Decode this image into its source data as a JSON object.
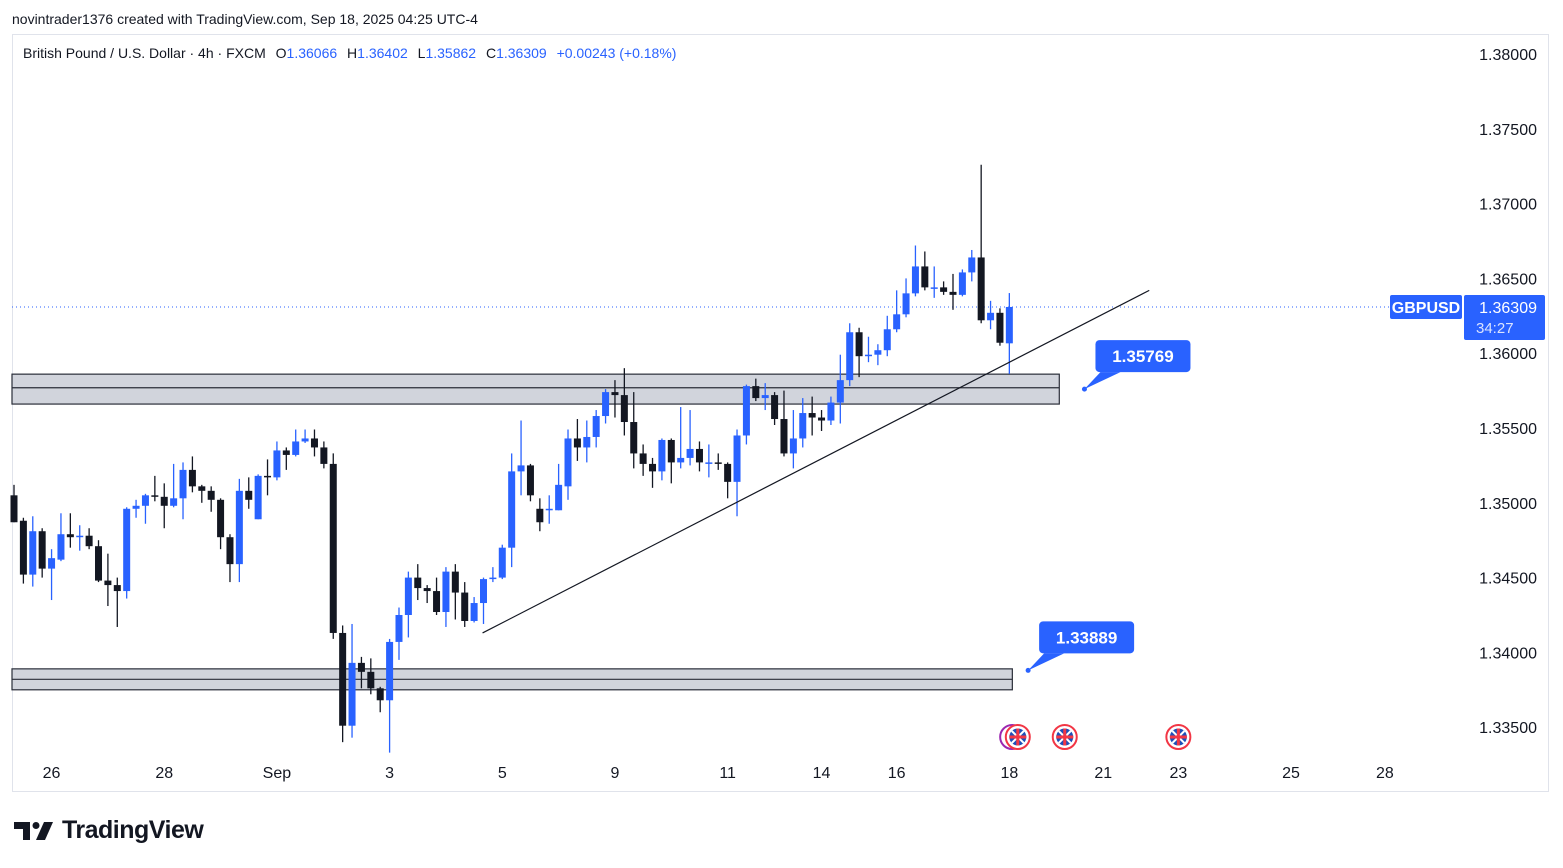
{
  "caption": "novintrader1376 created with TradingView.com, Sep 18, 2025 04:25 UTC-4",
  "legend": {
    "symbol": "British Pound / U.S. Dollar · 4h · FXCM",
    "o_label": "O",
    "o": "1.36066",
    "h_label": "H",
    "h": "1.36402",
    "l_label": "L",
    "l": "1.35862",
    "c_label": "C",
    "c": "1.36309",
    "change": "+0.00243 (+0.18%)"
  },
  "price_tag": {
    "symbol": "GBPUSD",
    "price": "1.36309",
    "countdown": "34:27"
  },
  "logo": {
    "text": "TradingView"
  },
  "colors": {
    "up": "#2962ff",
    "down": "#131722",
    "zone_fill": "#d1d4dc",
    "zone_border": "#2a2e39",
    "callout": "#2962ff"
  },
  "chart_data": {
    "type": "candlestick",
    "title": "British Pound / U.S. Dollar · 4h · FXCM",
    "ylim": [
      1.3325,
      1.3815
    ],
    "y_ticks": [
      "1.38000",
      "1.37500",
      "1.37000",
      "1.36500",
      "1.36000",
      "1.35500",
      "1.35000",
      "1.34500",
      "1.34000",
      "1.33500"
    ],
    "x_ticks": [
      {
        "label": "26",
        "bar": 4
      },
      {
        "label": "28",
        "bar": 16
      },
      {
        "label": "Sep",
        "bar": 28
      },
      {
        "label": "3",
        "bar": 40
      },
      {
        "label": "5",
        "bar": 52
      },
      {
        "label": "9",
        "bar": 64
      },
      {
        "label": "11",
        "bar": 76
      },
      {
        "label": "14",
        "bar": 86
      },
      {
        "label": "16",
        "bar": 94
      },
      {
        "label": "18",
        "bar": 106
      },
      {
        "label": "21",
        "bar": 116
      },
      {
        "label": "23",
        "bar": 124
      },
      {
        "label": "25",
        "bar": 136
      },
      {
        "label": "28",
        "bar": 146
      }
    ],
    "candles_ohlc": [
      [
        1.3505,
        1.3512,
        1.3487,
        1.3487
      ],
      [
        1.3488,
        1.349,
        1.3446,
        1.3452
      ],
      [
        1.3452,
        1.3491,
        1.3444,
        1.3481
      ],
      [
        1.3481,
        1.3483,
        1.345,
        1.3456
      ],
      [
        1.3456,
        1.3469,
        1.3435,
        1.3463
      ],
      [
        1.3462,
        1.3493,
        1.3461,
        1.3479
      ],
      [
        1.3479,
        1.3493,
        1.347,
        1.3477
      ],
      [
        1.3477,
        1.3485,
        1.3468,
        1.3478
      ],
      [
        1.3478,
        1.3483,
        1.3469,
        1.3471
      ],
      [
        1.3471,
        1.3475,
        1.3447,
        1.3448
      ],
      [
        1.3448,
        1.3466,
        1.3431,
        1.3445
      ],
      [
        1.3445,
        1.345,
        1.3417,
        1.3441
      ],
      [
        1.3441,
        1.3497,
        1.3436,
        1.3496
      ],
      [
        1.3496,
        1.3502,
        1.349,
        1.3498
      ],
      [
        1.3498,
        1.3506,
        1.3486,
        1.3505
      ],
      [
        1.3505,
        1.3518,
        1.3501,
        1.3504
      ],
      [
        1.3504,
        1.3513,
        1.3483,
        1.3498
      ],
      [
        1.3498,
        1.3526,
        1.3497,
        1.3503
      ],
      [
        1.3503,
        1.3527,
        1.3489,
        1.3522
      ],
      [
        1.3522,
        1.3531,
        1.3507,
        1.3511
      ],
      [
        1.3511,
        1.3512,
        1.35,
        1.3508
      ],
      [
        1.3508,
        1.3511,
        1.3494,
        1.3502
      ],
      [
        1.3502,
        1.3503,
        1.3469,
        1.3477
      ],
      [
        1.3477,
        1.3479,
        1.3447,
        1.3459
      ],
      [
        1.3459,
        1.3516,
        1.3447,
        1.3508
      ],
      [
        1.3508,
        1.3517,
        1.3496,
        1.3502
      ],
      [
        1.3489,
        1.3519,
        1.3489,
        1.3518
      ],
      [
        1.3518,
        1.3529,
        1.3505,
        1.3517
      ],
      [
        1.3517,
        1.3541,
        1.3515,
        1.3535
      ],
      [
        1.3535,
        1.3537,
        1.3522,
        1.3532
      ],
      [
        1.3532,
        1.3549,
        1.3531,
        1.3541
      ],
      [
        1.3541,
        1.3549,
        1.354,
        1.3543
      ],
      [
        1.3543,
        1.3549,
        1.3531,
        1.3537
      ],
      [
        1.3537,
        1.3541,
        1.3523,
        1.3526
      ],
      [
        1.3526,
        1.3533,
        1.3409,
        1.3413
      ],
      [
        1.3413,
        1.3418,
        1.334,
        1.3351
      ],
      [
        1.3351,
        1.3419,
        1.3343,
        1.3393
      ],
      [
        1.3393,
        1.3397,
        1.3376,
        1.3387
      ],
      [
        1.3387,
        1.3396,
        1.3372,
        1.3376
      ],
      [
        1.3376,
        1.3377,
        1.336,
        1.3368
      ],
      [
        1.3368,
        1.3409,
        1.3333,
        1.3407
      ],
      [
        1.3407,
        1.343,
        1.3395,
        1.3425
      ],
      [
        1.3425,
        1.3454,
        1.341,
        1.345
      ],
      [
        1.345,
        1.3459,
        1.3435,
        1.3443
      ],
      [
        1.3443,
        1.3445,
        1.3433,
        1.3441
      ],
      [
        1.3441,
        1.345,
        1.3425,
        1.3427
      ],
      [
        1.3427,
        1.3457,
        1.3417,
        1.3454
      ],
      [
        1.3454,
        1.3459,
        1.3422,
        1.344
      ],
      [
        1.344,
        1.3447,
        1.3417,
        1.3421
      ],
      [
        1.3421,
        1.3437,
        1.342,
        1.3433
      ],
      [
        1.3433,
        1.345,
        1.3419,
        1.3449
      ],
      [
        1.3449,
        1.3457,
        1.3447,
        1.345
      ],
      [
        1.345,
        1.3472,
        1.3449,
        1.347
      ],
      [
        1.347,
        1.3533,
        1.3457,
        1.3521
      ],
      [
        1.3521,
        1.3555,
        1.3505,
        1.3525
      ],
      [
        1.3525,
        1.3526,
        1.3501,
        1.3505
      ],
      [
        1.3496,
        1.3503,
        1.3481,
        1.3487
      ],
      [
        1.3495,
        1.3505,
        1.3486,
        1.3496
      ],
      [
        1.3495,
        1.3526,
        1.3495,
        1.3512
      ],
      [
        1.3511,
        1.3549,
        1.3502,
        1.3543
      ],
      [
        1.3543,
        1.3556,
        1.3528,
        1.3537
      ],
      [
        1.3537,
        1.3555,
        1.3527,
        1.3544
      ],
      [
        1.3544,
        1.3562,
        1.3537,
        1.3558
      ],
      [
        1.3558,
        1.3576,
        1.3553,
        1.3574
      ],
      [
        1.3574,
        1.3582,
        1.3557,
        1.3572
      ],
      [
        1.3572,
        1.359,
        1.3545,
        1.3554
      ],
      [
        1.3554,
        1.3574,
        1.3523,
        1.3533
      ],
      [
        1.3533,
        1.3539,
        1.3518,
        1.3526
      ],
      [
        1.3526,
        1.353,
        1.351,
        1.3521
      ],
      [
        1.3521,
        1.3543,
        1.3515,
        1.3542
      ],
      [
        1.3542,
        1.3543,
        1.3513,
        1.3527
      ],
      [
        1.3527,
        1.3564,
        1.3523,
        1.353
      ],
      [
        1.353,
        1.3562,
        1.3525,
        1.3536
      ],
      [
        1.3536,
        1.3541,
        1.3521,
        1.3527
      ],
      [
        1.3527,
        1.3539,
        1.3517,
        1.3527
      ],
      [
        1.3527,
        1.3533,
        1.3522,
        1.3526
      ],
      [
        1.3526,
        1.3527,
        1.3503,
        1.3514
      ],
      [
        1.3514,
        1.3549,
        1.3491,
        1.3545
      ],
      [
        1.3545,
        1.3579,
        1.3539,
        1.3578
      ],
      [
        1.3578,
        1.3583,
        1.3568,
        1.357
      ],
      [
        1.357,
        1.358,
        1.3562,
        1.3572
      ],
      [
        1.3572,
        1.3574,
        1.3552,
        1.3556
      ],
      [
        1.3556,
        1.3575,
        1.3531,
        1.3533
      ],
      [
        1.3533,
        1.3562,
        1.3523,
        1.3543
      ],
      [
        1.3543,
        1.357,
        1.3537,
        1.356
      ],
      [
        1.356,
        1.3571,
        1.3545,
        1.3557
      ],
      [
        1.3557,
        1.3562,
        1.3548,
        1.3555
      ],
      [
        1.3555,
        1.3571,
        1.3552,
        1.3567
      ],
      [
        1.3567,
        1.3599,
        1.3553,
        1.3582
      ],
      [
        1.3582,
        1.362,
        1.3578,
        1.3614
      ],
      [
        1.3614,
        1.3617,
        1.3584,
        1.3598
      ],
      [
        1.3598,
        1.3611,
        1.3594,
        1.3599
      ],
      [
        1.3599,
        1.3606,
        1.3592,
        1.3602
      ],
      [
        1.3602,
        1.3625,
        1.3598,
        1.3616
      ],
      [
        1.3616,
        1.3642,
        1.3614,
        1.3626
      ],
      [
        1.3626,
        1.365,
        1.3624,
        1.364
      ],
      [
        1.364,
        1.3672,
        1.3638,
        1.3658
      ],
      [
        1.3658,
        1.3668,
        1.3642,
        1.3644
      ],
      [
        1.3644,
        1.3658,
        1.3637,
        1.3644
      ],
      [
        1.3644,
        1.3648,
        1.3639,
        1.3641
      ],
      [
        1.3641,
        1.3653,
        1.3629,
        1.3639
      ],
      [
        1.3639,
        1.3656,
        1.3638,
        1.3654
      ],
      [
        1.3654,
        1.3669,
        1.3648,
        1.3664
      ],
      [
        1.3664,
        1.3726,
        1.362,
        1.3622
      ],
      [
        1.3622,
        1.3635,
        1.3616,
        1.3627
      ],
      [
        1.3627,
        1.363,
        1.3605,
        1.3607
      ],
      [
        1.36066,
        1.36402,
        1.35862,
        1.36309
      ]
    ],
    "last_price": 1.36309,
    "zones": [
      {
        "top": 1.3586,
        "bottom": 1.3566,
        "mid": 1.35769,
        "from_bar": 0,
        "to_bar": 111
      },
      {
        "top": 1.3389,
        "bottom": 1.3375,
        "mid": 1.3382,
        "from_bar": 0,
        "to_bar": 106
      }
    ],
    "trendline": {
      "from": [
        49.9,
        1.3413
      ],
      "to": [
        120.9,
        1.3642
      ]
    },
    "callouts": [
      {
        "text": "1.35769",
        "anchor": [
          114,
          1.3576
        ]
      },
      {
        "text": "1.33889",
        "anchor": [
          108,
          1.3388
        ]
      }
    ],
    "events_bars": [
      106.3,
      106.9,
      111.9,
      124
    ]
  }
}
